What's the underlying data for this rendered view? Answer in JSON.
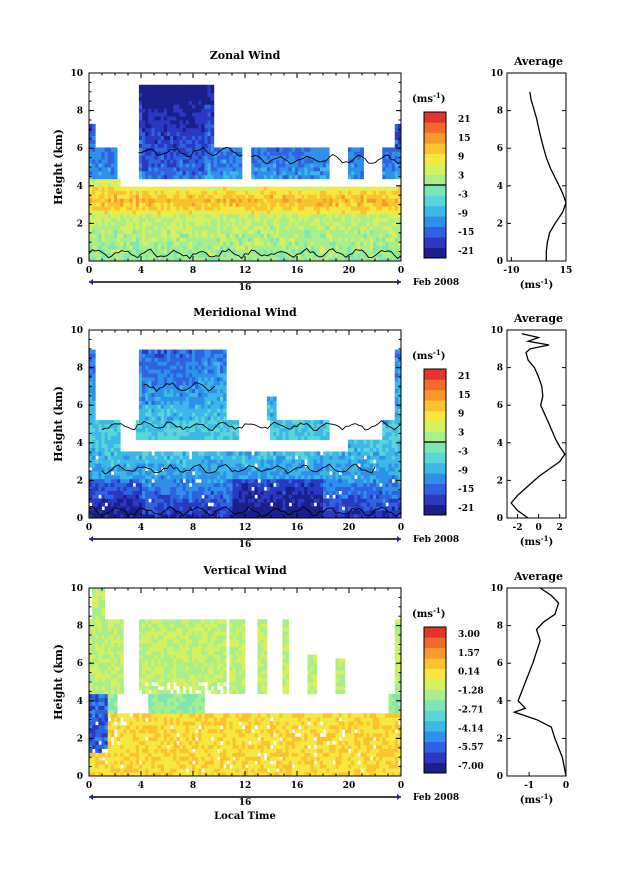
{
  "palette": [
    "#1b1f8a",
    "#2a38c4",
    "#2f62e0",
    "#2f90ea",
    "#3bb8e8",
    "#5ad6d8",
    "#7ee6b4",
    "#a8ee8a",
    "#d6f060",
    "#f6e840",
    "#fbc230",
    "#f79a2e",
    "#f06a2e",
    "#e2352c"
  ],
  "panels": [
    {
      "title": "Zonal Wind",
      "ylabel": "Height (km)",
      "yticks": [
        "0",
        "2",
        "4",
        "6",
        "8",
        "10"
      ],
      "xticks": [
        "0",
        "4",
        "8",
        "12",
        "16",
        "20",
        "0"
      ],
      "day_label": "16",
      "date_label": "Feb 2008",
      "unit_label": "(ms",
      "unit_exp": "-1",
      "colorbar_ticks": [
        "21",
        "15",
        "9",
        "3",
        "-3",
        "-9",
        "-15",
        "-21"
      ],
      "avg": {
        "title": "Average",
        "xticks": [
          "-10",
          "15"
        ],
        "xlim": [
          -12,
          15
        ],
        "ylim": [
          0,
          10
        ],
        "unit": "(ms",
        "unit_exp": "-1",
        "profile": [
          [
            -1.5,
            9.0
          ],
          [
            -1.0,
            8.6
          ],
          [
            0.0,
            8.2
          ],
          [
            1.5,
            7.6
          ],
          [
            3.0,
            6.8
          ],
          [
            4.5,
            6.1
          ],
          [
            6.0,
            5.5
          ],
          [
            8.0,
            4.9
          ],
          [
            11.0,
            4.2
          ],
          [
            13.5,
            3.6
          ],
          [
            15.0,
            3.1
          ],
          [
            13.5,
            2.6
          ],
          [
            10.0,
            2.0
          ],
          [
            7.5,
            1.5
          ],
          [
            6.5,
            1.0
          ],
          [
            6.0,
            0.5
          ],
          [
            6.0,
            0.0
          ]
        ]
      }
    },
    {
      "title": "Meridional Wind",
      "ylabel": "Height (km)",
      "yticks": [
        "0",
        "2",
        "4",
        "6",
        "8",
        "10"
      ],
      "xticks": [
        "0",
        "4",
        "8",
        "12",
        "16",
        "20",
        "0"
      ],
      "day_label": "16",
      "date_label": "Feb 2008",
      "unit_label": "(ms",
      "unit_exp": "-1",
      "colorbar_ticks": [
        "21",
        "15",
        "9",
        "3",
        "-3",
        "-9",
        "-15",
        "-21"
      ],
      "avg": {
        "title": "Average",
        "xticks": [
          "-2",
          "0",
          "2"
        ],
        "xlim": [
          -3,
          2.6
        ],
        "ylim": [
          0,
          10
        ],
        "unit": "(ms",
        "unit_exp": "-1",
        "profile": [
          [
            -1.6,
            9.8
          ],
          [
            0.0,
            9.6
          ],
          [
            -1.0,
            9.4
          ],
          [
            1.0,
            9.2
          ],
          [
            -0.8,
            9.0
          ],
          [
            -1.2,
            8.8
          ],
          [
            -1.0,
            8.4
          ],
          [
            -0.4,
            8.0
          ],
          [
            0.0,
            7.5
          ],
          [
            0.3,
            7.0
          ],
          [
            0.4,
            6.5
          ],
          [
            0.2,
            6.0
          ],
          [
            0.6,
            5.5
          ],
          [
            1.0,
            5.0
          ],
          [
            1.3,
            4.6
          ],
          [
            1.6,
            4.2
          ],
          [
            2.0,
            3.8
          ],
          [
            2.5,
            3.4
          ],
          [
            2.0,
            3.0
          ],
          [
            1.0,
            2.6
          ],
          [
            0.0,
            2.2
          ],
          [
            -1.0,
            1.7
          ],
          [
            -2.0,
            1.2
          ],
          [
            -2.6,
            0.8
          ],
          [
            -2.0,
            0.4
          ],
          [
            -1.0,
            0.0
          ]
        ]
      }
    },
    {
      "title": "Vertical Wind",
      "ylabel": "Height (km)",
      "yticks": [
        "0",
        "2",
        "4",
        "6",
        "8",
        "10"
      ],
      "xticks": [
        "0",
        "4",
        "8",
        "12",
        "16",
        "20",
        "0"
      ],
      "day_label": "16",
      "date_label": "Feb 2008",
      "xlabel": "Local Time",
      "unit_label": "(ms",
      "unit_exp": "-1",
      "colorbar_ticks": [
        "3.00",
        "1.57",
        "0.14",
        "-1.28",
        "-2.71",
        "-4.14",
        "-5.57",
        "-7.00"
      ],
      "avg": {
        "title": "Average",
        "xticks": [
          "-1",
          "0"
        ],
        "xlim": [
          -1.6,
          0
        ],
        "ylim": [
          0,
          10
        ],
        "unit": "(ms",
        "unit_exp": "-1",
        "profile": [
          [
            -0.7,
            10.0
          ],
          [
            -0.4,
            9.6
          ],
          [
            -0.2,
            9.2
          ],
          [
            -0.3,
            8.6
          ],
          [
            -0.6,
            8.2
          ],
          [
            -0.8,
            7.8
          ],
          [
            -0.7,
            7.2
          ],
          [
            -0.8,
            6.6
          ],
          [
            -0.9,
            6.0
          ],
          [
            -1.0,
            5.5
          ],
          [
            -1.1,
            5.0
          ],
          [
            -1.2,
            4.5
          ],
          [
            -1.3,
            4.0
          ],
          [
            -1.1,
            3.6
          ],
          [
            -1.4,
            3.4
          ],
          [
            -0.8,
            3.0
          ],
          [
            -0.4,
            2.6
          ],
          [
            -0.3,
            2.0
          ],
          [
            -0.2,
            1.5
          ],
          [
            -0.1,
            1.0
          ],
          [
            0.0,
            0.0
          ]
        ]
      }
    }
  ]
}
